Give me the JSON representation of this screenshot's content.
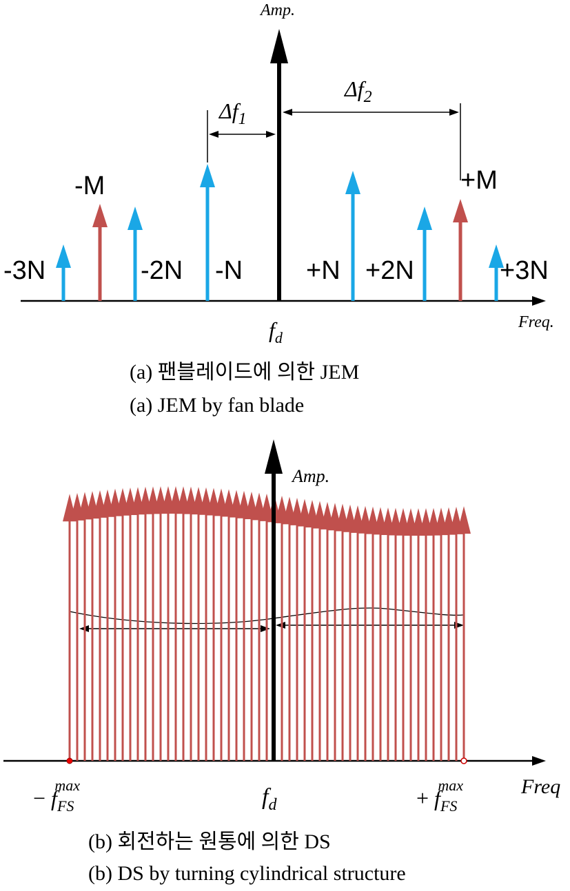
{
  "panel_a": {
    "y_axis_label": "Amp.",
    "x_axis_label": "Freq.",
    "center_label": {
      "base": "f",
      "sub": "d"
    },
    "delta_f1": {
      "base": "Δf",
      "sub": "1"
    },
    "delta_f2": {
      "base": "Δf",
      "sub": "2"
    },
    "line_labels": [
      "-3N",
      "-M",
      "-2N",
      "-N",
      "+N",
      "+2N",
      "+M",
      "+3N"
    ],
    "caption_korean": "(a) 팬블레이드에 의한 JEM",
    "caption_english": "(a) JEM by fan blade"
  },
  "panel_b": {
    "y_axis_label": "Amp.",
    "x_axis_label": "Freq",
    "center_label": {
      "base": "f",
      "sub": "d"
    },
    "left_label": {
      "sign": "−",
      "base": "f",
      "sub": "FS",
      "sup": "max"
    },
    "right_label": {
      "sign": "+",
      "base": "f",
      "sub": "FS",
      "sup": "max"
    },
    "caption_korean": "(b) 회전하는 원통에 의한 DS",
    "caption_english": "(b) DS by turning cylindrical structure"
  }
}
